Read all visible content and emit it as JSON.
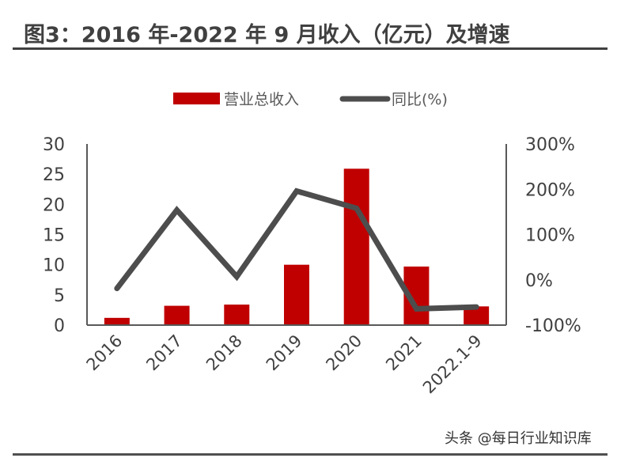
{
  "title": "图3：2016 年-2022 年 9 月收入（亿元）及增速",
  "watermark": "头条 @每日行业知识库",
  "colors": {
    "bar": "#C00000",
    "line": "#4D4D4D",
    "axis": "#595959"
  },
  "legend": {
    "bar_label": "营业总收入",
    "line_label": "同比(%)"
  },
  "axes": {
    "left_ticks": [
      "30",
      "25",
      "20",
      "15",
      "10",
      "5",
      "0"
    ],
    "right_ticks": [
      "300%",
      "200%",
      "100%",
      "0%",
      "-100%"
    ]
  },
  "chart_data": {
    "type": "bar",
    "title": "图3：2016 年-2022 年 9 月收入（亿元）及增速",
    "xlabel": "",
    "ylabel": "",
    "categories": [
      "2016",
      "2017",
      "2018",
      "2019",
      "2020",
      "2021",
      "2022.1-9"
    ],
    "series": [
      {
        "name": "营业总收入",
        "type": "bar",
        "axis": "left",
        "values": [
          1.2,
          3.2,
          3.4,
          10.0,
          25.9,
          9.7,
          3.1
        ]
      },
      {
        "name": "同比(%)",
        "type": "line",
        "axis": "right",
        "values": [
          -19,
          154,
          7,
          196,
          158,
          -64,
          -60
        ]
      }
    ],
    "ylim": [
      0,
      30
    ],
    "y2lim": [
      -100,
      300
    ],
    "left_ticks": [
      0,
      5,
      10,
      15,
      20,
      25,
      30
    ],
    "right_ticks": [
      "-100%",
      "0%",
      "100%",
      "200%",
      "300%"
    ],
    "legend_position": "top",
    "grid": false
  }
}
